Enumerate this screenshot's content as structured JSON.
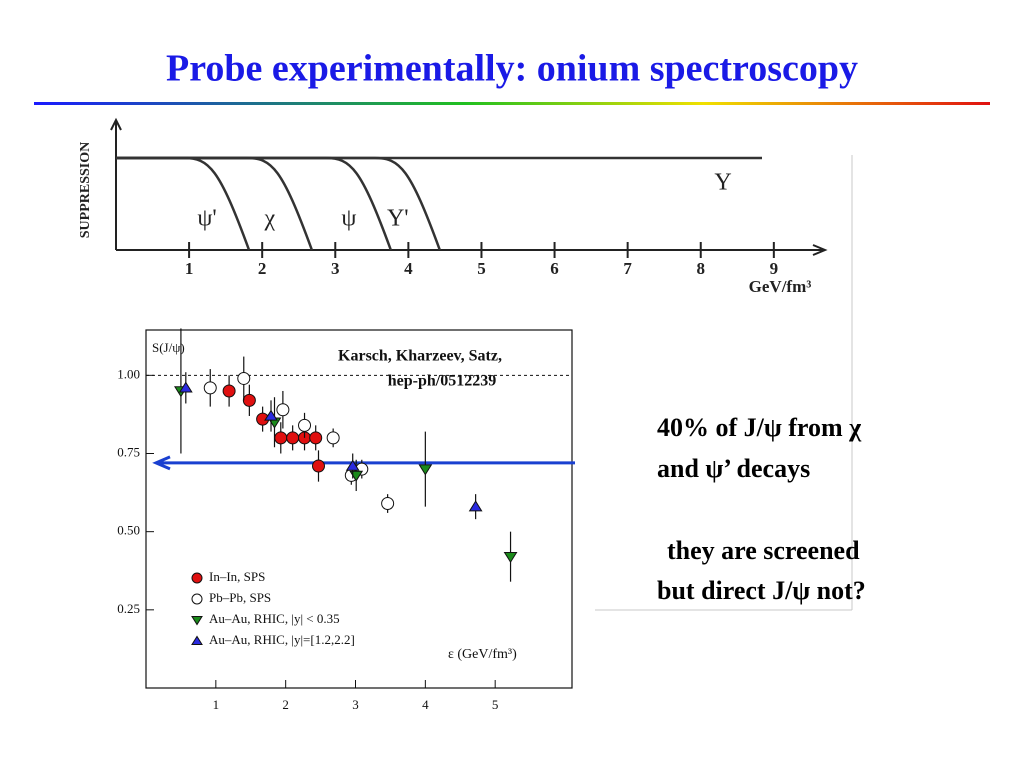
{
  "title": "Probe experimentally: onium spectroscopy",
  "chart_data": [
    {
      "type": "threshold",
      "ylabel": "SUPPRESSION",
      "xlabel": "GeV/fm³",
      "xlim": [
        0,
        9.7
      ],
      "xticks": [
        1,
        2,
        3,
        4,
        5,
        6,
        7,
        8,
        9
      ],
      "series": [
        {
          "name": "ψ'",
          "value": 1.82
        },
        {
          "name": "χ",
          "value": 2.68
        },
        {
          "name": "ψ",
          "value": 3.76
        },
        {
          "name": "Υ'",
          "value": 4.43
        },
        {
          "name": "Υ",
          "value": null
        }
      ]
    },
    {
      "type": "scatter",
      "ylabel": "S(J/ψ)",
      "xlabel": "ε (GeV/fm³)",
      "annotations": [
        "Karsch, Kharzeev, Satz,",
        "hep-ph/0512239"
      ],
      "xlim": [
        0,
        6.1
      ],
      "ylim": [
        0,
        1.145
      ],
      "xticks": [
        1,
        2,
        3,
        4,
        5
      ],
      "yticks": [
        {
          "value": 1,
          "label": "1.00"
        },
        {
          "value": 0.75,
          "label": "0.75"
        },
        {
          "value": 0.5,
          "label": "0.50"
        },
        {
          "value": 0.25,
          "label": "0.25"
        }
      ],
      "hline": 1,
      "arrow_y": 0.72,
      "series": [
        {
          "name": "In–In, SPS",
          "color": "#e01010",
          "marker": "circle",
          "x": [
            1.19,
            1.48,
            1.67,
            1.93,
            2.1,
            2.27,
            2.43,
            2.47
          ],
          "y": [
            0.95,
            0.92,
            0.86,
            0.8,
            0.8,
            0.8,
            0.8,
            0.71
          ],
          "err": [
            0.05,
            0.05,
            0.04,
            0.05,
            0.04,
            0.04,
            0.04,
            0.05
          ]
        },
        {
          "name": "Pb–Pb, SPS",
          "color": "#ffffff",
          "marker": "circle",
          "x": [
            0.92,
            1.4,
            1.96,
            2.27,
            2.68,
            2.94,
            3.09,
            3.46
          ],
          "y": [
            0.96,
            0.99,
            0.89,
            0.84,
            0.8,
            0.68,
            0.7,
            0.59
          ],
          "err": [
            0.06,
            0.07,
            0.06,
            0.04,
            0.03,
            0.03,
            0.03,
            0.03
          ]
        },
        {
          "name": "Au–Au, RHIC, |y| < 0.35",
          "color": "#1a8a1a",
          "marker": "down",
          "x": [
            0.5,
            1.84,
            3.01,
            4.0,
            5.22
          ],
          "y": [
            0.95,
            0.85,
            0.68,
            0.7,
            0.42
          ],
          "err": [
            0.2,
            0.08,
            0.05,
            0.12,
            0.08
          ]
        },
        {
          "name": "Au–Au, RHIC, |y|=[1.2,2.2]",
          "color": "#2a2ae0",
          "marker": "up",
          "x": [
            0.57,
            1.79,
            2.96,
            4.72
          ],
          "y": [
            0.96,
            0.87,
            0.71,
            0.58
          ],
          "err": [
            0.05,
            0.05,
            0.04,
            0.04
          ]
        }
      ]
    }
  ],
  "notes": [
    [
      "40% of J/ψ from χ",
      "and ψ’ decays"
    ],
    [
      "they are screened",
      "but direct J/ψ not?"
    ]
  ]
}
